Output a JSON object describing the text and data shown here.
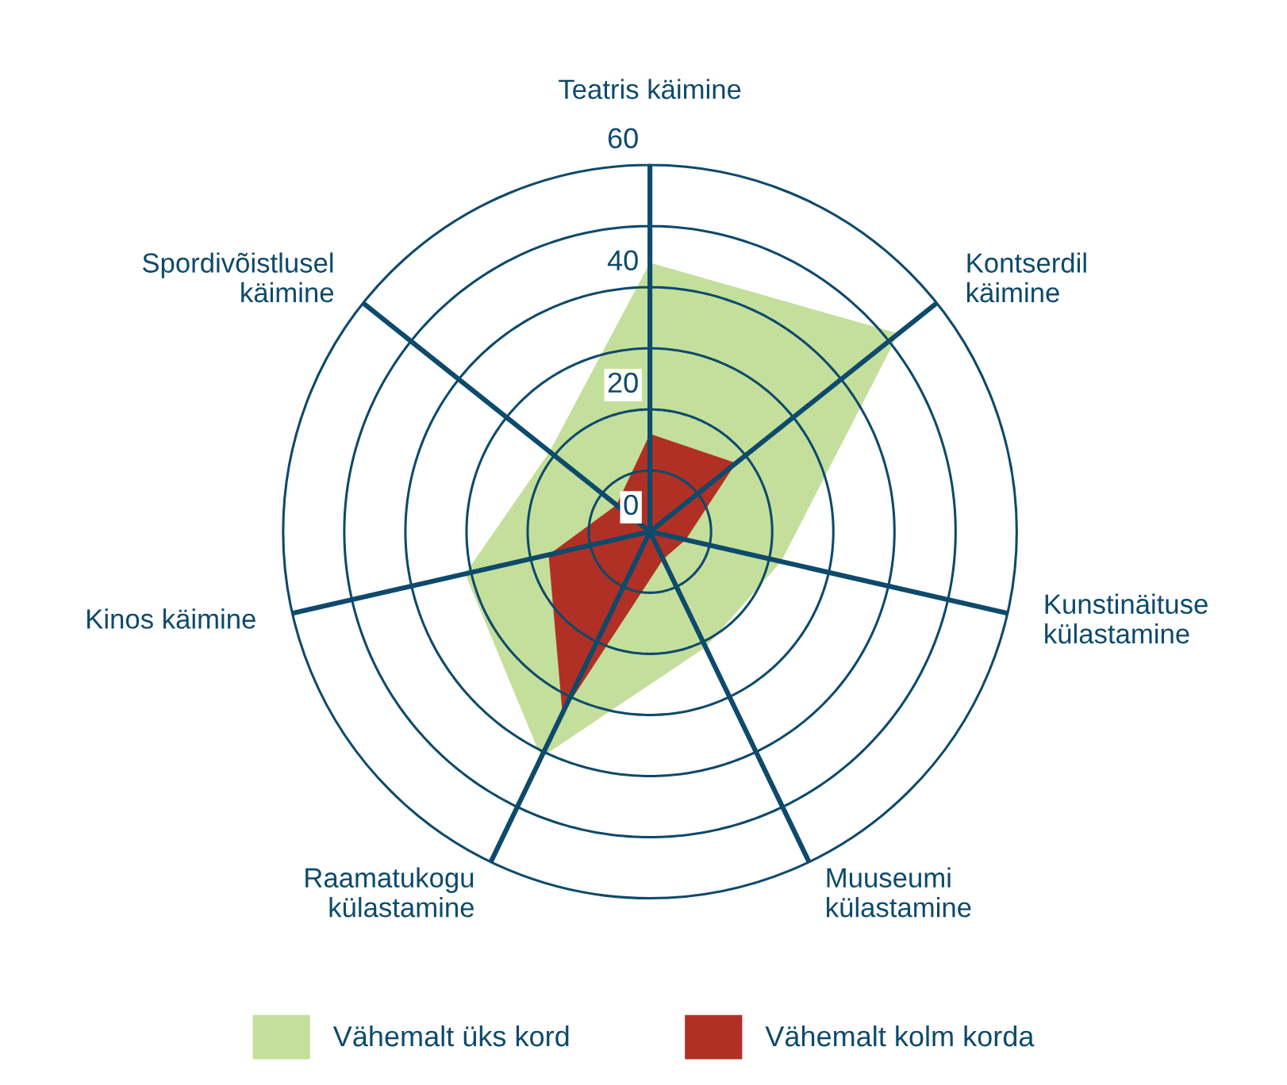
{
  "chart_data": {
    "type": "radar",
    "categories": [
      "Teatris käimine",
      "Kontserdil käimine",
      "Kunstinäituse külastamine",
      "Muuseumi külastamine",
      "Raamatukogu külastamine",
      "Kinos käimine",
      "Spordivõistlusel käimine"
    ],
    "series": [
      {
        "name": "Vähemalt üks kord",
        "color": "#c4df9b",
        "values": [
          44,
          52,
          22,
          21,
          41,
          31,
          21
        ]
      },
      {
        "name": "Vähemalt kolm korda",
        "color": "#b03025",
        "values": [
          16,
          18,
          6,
          5,
          33,
          17,
          7
        ]
      }
    ],
    "ylim": [
      0,
      60
    ],
    "yticks": [
      0,
      20,
      40,
      60
    ],
    "grid": true,
    "legend": "bottom",
    "marker": "none"
  }
}
